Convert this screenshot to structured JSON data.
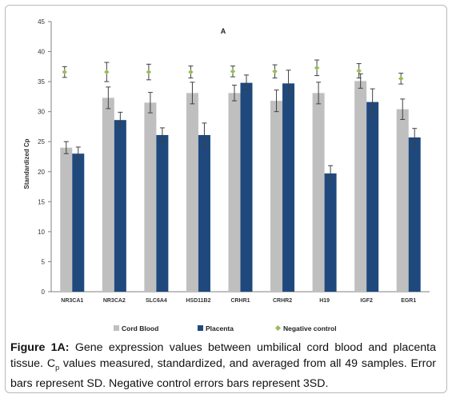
{
  "chart_data": {
    "type": "bar",
    "title": "A",
    "ylabel": "Standardized Cp",
    "xlabel": "",
    "ylim": [
      0,
      45
    ],
    "yticks": [
      0,
      5,
      10,
      15,
      20,
      25,
      30,
      35,
      40,
      45
    ],
    "categories": [
      "NR3CA1",
      "NR3CA2",
      "SLC6A4",
      "HSD11B2",
      "CRHR1",
      "CRHR2",
      "H19",
      "IGF2",
      "EGR1"
    ],
    "series": [
      {
        "name": "Cord Blood",
        "color": "#bfbfbf",
        "values": [
          24.0,
          32.3,
          31.5,
          33.1,
          33.1,
          31.8,
          33.1,
          35.1,
          30.4
        ],
        "errors": [
          1.0,
          1.8,
          1.7,
          1.8,
          1.3,
          1.8,
          1.8,
          1.2,
          1.7
        ]
      },
      {
        "name": "Placenta",
        "color": "#1f497d",
        "values": [
          23.0,
          28.6,
          26.1,
          26.1,
          34.8,
          34.7,
          19.7,
          31.6,
          25.7
        ],
        "errors": [
          1.1,
          1.3,
          1.2,
          2.0,
          1.3,
          2.2,
          1.3,
          2.2,
          1.5
        ]
      },
      {
        "name": "Negative control",
        "color": "#9bbb59",
        "values": [
          36.6,
          36.6,
          36.6,
          36.6,
          36.7,
          36.7,
          37.3,
          36.8,
          35.5
        ],
        "errors": [
          0.9,
          1.6,
          1.3,
          1.0,
          0.9,
          1.1,
          1.3,
          1.2,
          0.9
        ]
      }
    ],
    "legend_position": "bottom",
    "grid": false
  },
  "caption": {
    "label": "Figure 1A:",
    "text_before_sub": " Gene expression values between umbilical cord blood and placenta tissue. C",
    "subscript": "p",
    "text_after_sub": " values measured, standardized, and averaged from all 49 samples. Error bars represent SD. Negative control errors bars represent 3SD."
  }
}
